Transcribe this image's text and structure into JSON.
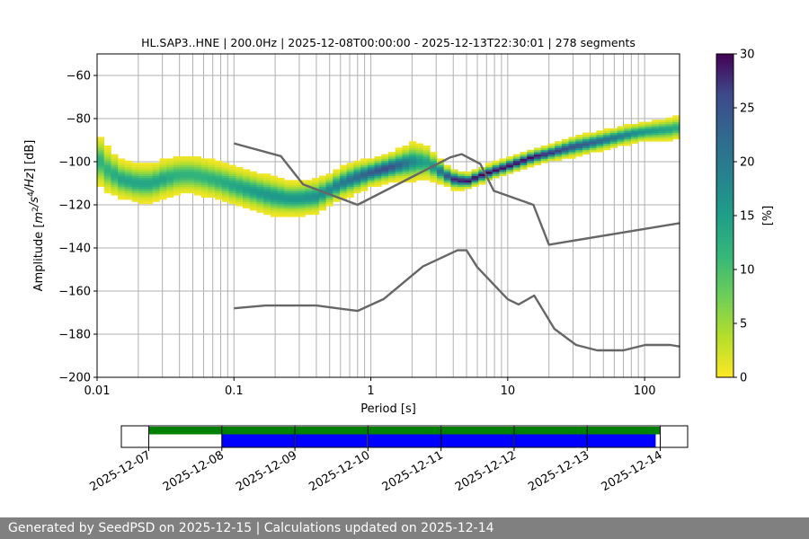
{
  "footer": "Generated by SeedPSD on 2025-12-15 | Calculations updated on 2025-12-14",
  "chart_data": [
    {
      "type": "heatmap",
      "title": "HL.SAP3..HNE | 200.0Hz | 2025-12-08T00:00:00 - 2025-12-13T22:30:01 | 278 segments",
      "xlabel": "Period [s]",
      "ylabel_parts": [
        "Amplitude [",
        "m",
        "2",
        "/",
        "s",
        "4",
        "/Hz",
        "] [dB]"
      ],
      "xscale": "log",
      "xlim": [
        0.01,
        180
      ],
      "ylim": [
        -200,
        -50
      ],
      "xticks": [
        0.01,
        0.1,
        1,
        10,
        100
      ],
      "xtick_labels": [
        "0.01",
        "0.1",
        "1",
        "10",
        "100"
      ],
      "yticks": [
        -200,
        -180,
        -160,
        -140,
        -120,
        -100,
        -80,
        -60
      ],
      "grid": true,
      "colorbar": {
        "label": "[%]",
        "range": [
          0,
          30
        ],
        "ticks": [
          0,
          5,
          10,
          15,
          20,
          25,
          30
        ],
        "colormap": "viridis_r"
      },
      "psd_centerline": {
        "period": [
          0.01,
          0.012,
          0.015,
          0.02,
          0.025,
          0.03,
          0.04,
          0.05,
          0.06,
          0.08,
          0.1,
          0.13,
          0.17,
          0.2,
          0.25,
          0.3,
          0.4,
          0.5,
          0.6,
          0.8,
          1.0,
          1.3,
          1.7,
          2.0,
          2.5,
          3.0,
          3.5,
          4.0,
          5.0,
          6.0,
          8.0,
          10,
          15,
          20,
          30,
          50,
          80,
          100,
          150,
          180
        ],
        "amplitude_db": [
          -98,
          -104,
          -108,
          -110,
          -110,
          -108,
          -106,
          -106,
          -107,
          -109,
          -111,
          -113,
          -115,
          -116,
          -117,
          -117,
          -116,
          -113,
          -110,
          -107,
          -105,
          -103,
          -101,
          -100,
          -100,
          -103,
          -106,
          -108,
          -109,
          -107,
          -104,
          -102,
          -98,
          -96,
          -93,
          -90,
          -87,
          -86,
          -85,
          -84
        ],
        "peak_density_pct": [
          12,
          12,
          14,
          14,
          14,
          14,
          12,
          12,
          12,
          13,
          14,
          15,
          16,
          16,
          16,
          16,
          17,
          18,
          20,
          22,
          24,
          26,
          22,
          18,
          14,
          18,
          24,
          28,
          30,
          30,
          30,
          30,
          30,
          28,
          25,
          22,
          18,
          16,
          14,
          13
        ],
        "spread_db": [
          14,
          12,
          10,
          10,
          10,
          10,
          10,
          10,
          10,
          10,
          10,
          10,
          10,
          10,
          9,
          9,
          9,
          8,
          8,
          8,
          7,
          7,
          8,
          10,
          9,
          7,
          5,
          5,
          4,
          4,
          4,
          4,
          4,
          4,
          5,
          5,
          5,
          5,
          6,
          6
        ]
      },
      "noise_models": [
        {
          "period": [
            0.1,
            0.22,
            0.32,
            0.8,
            3.8,
            4.6,
            6.3,
            7.9,
            15.4,
            20.0,
            180
          ],
          "amplitude_db": [
            -91.5,
            -97.4,
            -110.5,
            -120.0,
            -98.0,
            -96.5,
            -101.0,
            -113.5,
            -120.0,
            -138.5,
            -128.5
          ]
        },
        {
          "period": [
            0.1,
            0.17,
            0.4,
            0.8,
            1.24,
            2.4,
            4.3,
            5.0,
            6.0,
            10.0,
            12.0,
            15.6,
            21.9,
            31.6,
            45.0,
            70.0,
            101.0,
            154.0,
            180
          ],
          "amplitude_db": [
            -168.0,
            -166.7,
            -166.7,
            -169.2,
            -163.7,
            -148.6,
            -141.1,
            -141.1,
            -149.0,
            -163.8,
            -166.2,
            -162.1,
            -177.5,
            -185.0,
            -187.5,
            -187.5,
            -185.0,
            -185.0,
            -185.7
          ]
        }
      ]
    },
    {
      "type": "bar",
      "title": "",
      "tick_labels": [
        "2025-12-07",
        "2025-12-08",
        "2025-12-09",
        "2025-12-10",
        "2025-12-11",
        "2025-12-12",
        "2025-12-13",
        "2025-12-14"
      ],
      "xlim": [
        "2025-12-06T15:00:00",
        "2025-12-14T09:00:00"
      ],
      "series": [
        {
          "color": "#008000",
          "spans": [
            [
              "2025-12-07T00:00:00",
              "2025-12-14T00:00:00"
            ]
          ]
        },
        {
          "color": "#0000ff",
          "spans": [
            [
              "2025-12-08T00:00:00",
              "2025-12-08T23:50:00"
            ],
            [
              "2025-12-09T00:10:00",
              "2025-12-09T23:50:00"
            ],
            [
              "2025-12-10T00:10:00",
              "2025-12-11T23:50:00"
            ],
            [
              "2025-12-12T00:10:00",
              "2025-12-13T22:30:01"
            ]
          ]
        }
      ]
    }
  ]
}
